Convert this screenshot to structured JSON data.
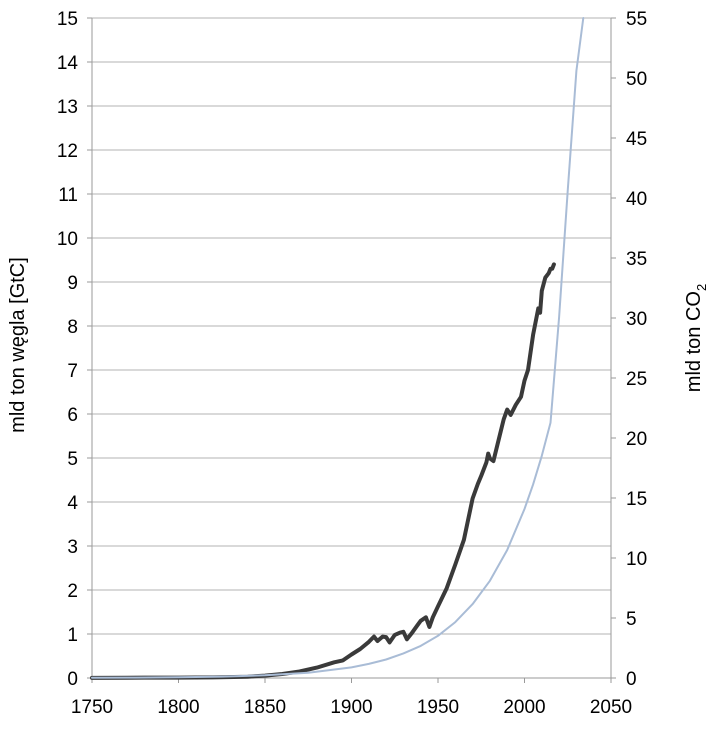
{
  "chart_data": {
    "type": "line",
    "title": "",
    "xlabel": "",
    "ylabel": "mld ton węgla [GtC]",
    "ylabel_right": {
      "main": "mld ton CO",
      "subscript": "2"
    },
    "xlim": [
      1750,
      2050
    ],
    "ylim": [
      0,
      15
    ],
    "ylim_right": [
      0,
      55
    ],
    "xticks": [
      1750,
      1800,
      1850,
      1900,
      1950,
      2000,
      2050
    ],
    "yticks": [
      0,
      1,
      2,
      3,
      4,
      5,
      6,
      7,
      8,
      9,
      10,
      11,
      12,
      13,
      14,
      15
    ],
    "yticks_right": [
      0,
      5,
      10,
      15,
      20,
      25,
      30,
      35,
      40,
      45,
      50,
      55
    ],
    "grid": "horizontal",
    "colors": {
      "grid": "#b3b3b3",
      "observed": "#3a3a3a",
      "trend": "#a9bcd6"
    },
    "series": [
      {
        "style": "observed",
        "x": [
          1750,
          1780,
          1800,
          1820,
          1840,
          1850,
          1860,
          1870,
          1880,
          1890,
          1895,
          1900,
          1905,
          1910,
          1913,
          1915,
          1918,
          1920,
          1922,
          1925,
          1928,
          1930,
          1932,
          1935,
          1938,
          1940,
          1943,
          1945,
          1947,
          1950,
          1955,
          1960,
          1965,
          1970,
          1973,
          1975,
          1978,
          1979,
          1980,
          1982,
          1985,
          1988,
          1990,
          1992,
          1995,
          1998,
          2000,
          2002,
          2005,
          2008,
          2009,
          2010,
          2012,
          2014,
          2015,
          2016,
          2017
        ],
        "y": [
          0.003,
          0.008,
          0.01,
          0.014,
          0.03,
          0.054,
          0.091,
          0.147,
          0.236,
          0.356,
          0.4,
          0.534,
          0.66,
          0.82,
          0.94,
          0.84,
          0.94,
          0.93,
          0.81,
          0.98,
          1.03,
          1.05,
          0.88,
          1.03,
          1.19,
          1.3,
          1.38,
          1.16,
          1.38,
          1.63,
          2.04,
          2.58,
          3.14,
          4.08,
          4.41,
          4.6,
          4.9,
          5.1,
          4.99,
          4.93,
          5.41,
          5.88,
          6.1,
          5.98,
          6.21,
          6.39,
          6.76,
          7.0,
          7.8,
          8.4,
          8.3,
          8.8,
          9.1,
          9.2,
          9.3,
          9.3,
          9.4
        ]
      },
      {
        "style": "trend",
        "x": [
          1750,
          1775,
          1800,
          1825,
          1850,
          1875,
          1900,
          1910,
          1920,
          1930,
          1940,
          1950,
          1960,
          1970,
          1980,
          1990,
          2000,
          2005,
          2010,
          2015,
          2020,
          2025,
          2030,
          2034
        ],
        "y": [
          0.004,
          0.008,
          0.016,
          0.031,
          0.061,
          0.121,
          0.24,
          0.32,
          0.42,
          0.56,
          0.73,
          0.96,
          1.27,
          1.68,
          2.21,
          2.91,
          3.84,
          4.4,
          5.05,
          5.8,
          8.2,
          11.1,
          13.8,
          15
        ]
      }
    ]
  }
}
